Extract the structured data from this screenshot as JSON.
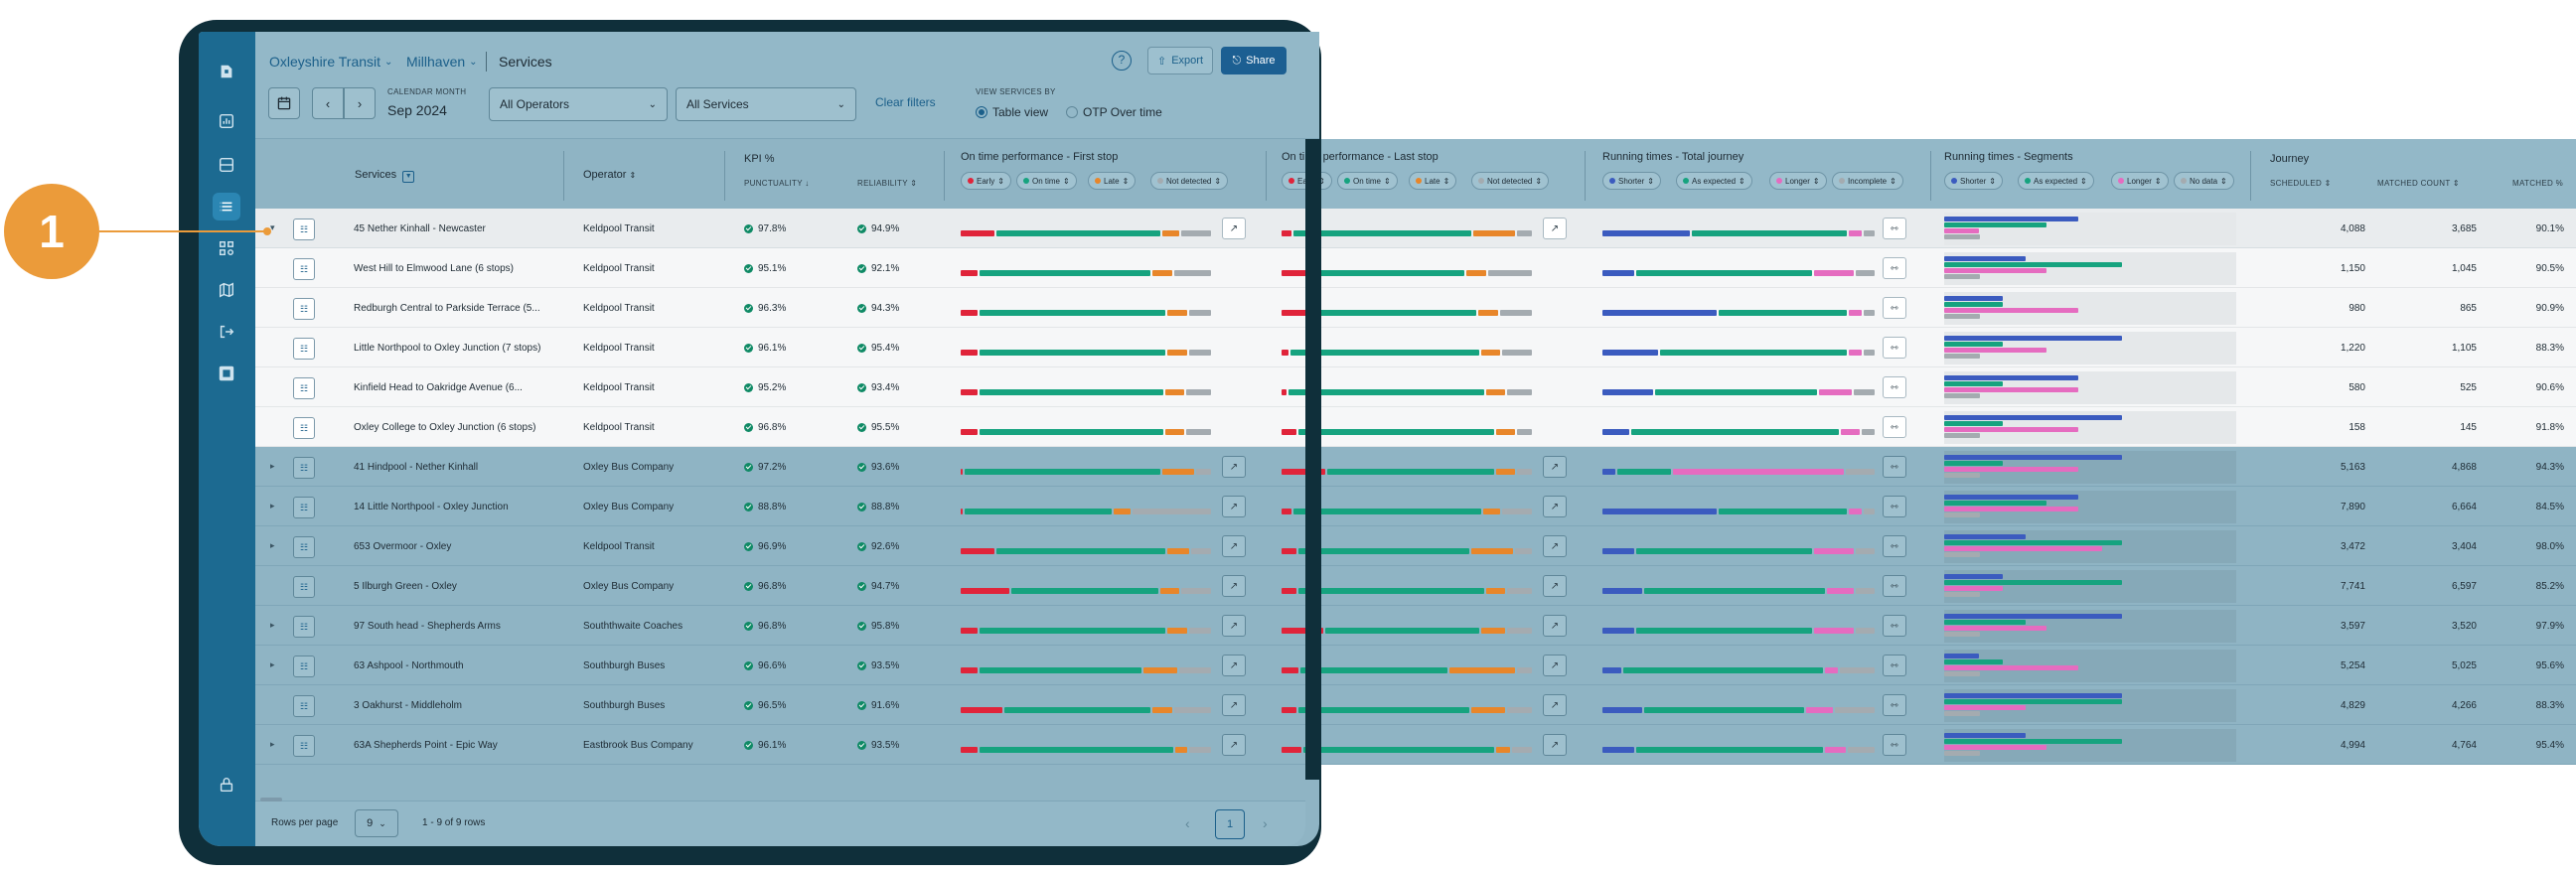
{
  "callout": {
    "label": "1"
  },
  "breadcrumb": {
    "org": "Oxleyshire Transit",
    "area": "Millhaven",
    "page": "Services"
  },
  "header": {
    "help": "?",
    "export_label": "Export",
    "share_label": "Share"
  },
  "filters": {
    "calendar_month_label": "CALENDAR MONTH",
    "calendar_month_value": "Sep 2024",
    "operator_select": "All Operators",
    "service_select": "All Services",
    "clear_label": "Clear filters",
    "view_by_label": "VIEW SERVICES BY",
    "view_table": "Table view",
    "view_otp": "OTP Over time"
  },
  "columns": {
    "services": "Services",
    "operator": "Operator",
    "kpi": "KPI %",
    "punctuality": "PUNCTUALITY",
    "reliability": "RELIABILITY",
    "otp_first": "On time performance - First stop",
    "otp_last": "On time performance - Last stop",
    "rt_total": "Running times - Total journey",
    "rt_segments": "Running times - Segments",
    "journey": "Journey",
    "scheduled": "SCHEDULED",
    "matched_count": "MATCHED COUNT",
    "matched_pct": "MATCHED %"
  },
  "chips": {
    "otp": [
      "Early",
      "On time",
      "Late",
      "Not detected"
    ],
    "rt_total": [
      "Shorter",
      "As expected",
      "Longer",
      "Incomplete"
    ],
    "rt_segments": [
      "Shorter",
      "As expected",
      "Longer",
      "No data"
    ]
  },
  "colors": {
    "early": "#e0243a",
    "on_time": "#16a37f",
    "late": "#e8862a",
    "not_detected": "#a4abb0",
    "shorter": "#3b5bbf",
    "as_expected": "#16a37f",
    "longer": "#e56cc0",
    "incomplete": "#a4abb0"
  },
  "rows": [
    {
      "type": "expanded",
      "name": "45 Nether Kinhall - Newcaster",
      "operator": "Keldpool Transit",
      "punctuality": "97.8%",
      "reliability": "94.9%",
      "scheduled": "4,088",
      "matched": "3,685",
      "matched_pct": "90.1%",
      "first": [
        0.14,
        0.67,
        0.07,
        0.12
      ],
      "last": [
        0.04,
        0.73,
        0.17,
        0.06
      ],
      "rt": [
        0.33,
        0.58,
        0.05,
        0.04
      ],
      "seg": [
        0.46,
        0.35,
        0.12
      ]
    },
    {
      "type": "child",
      "name": "West Hill to Elmwood Lane (6 stops)",
      "operator": "Keldpool Transit",
      "punctuality": "95.1%",
      "reliability": "92.1%",
      "scheduled": "1,150",
      "matched": "1,045",
      "matched_pct": "90.5%",
      "first": [
        0.07,
        0.7,
        0.08,
        0.15
      ],
      "last": [
        0.14,
        0.6,
        0.08,
        0.18
      ],
      "rt": [
        0.12,
        0.66,
        0.15,
        0.07
      ],
      "seg": [
        0.28,
        0.61,
        0.35
      ]
    },
    {
      "type": "child",
      "name": "Redburgh Central to Parkside Terrace (5...",
      "operator": "Keldpool Transit",
      "punctuality": "96.3%",
      "reliability": "94.3%",
      "scheduled": "980",
      "matched": "865",
      "matched_pct": "90.9%",
      "first": [
        0.07,
        0.76,
        0.08,
        0.09
      ],
      "last": [
        0.13,
        0.66,
        0.08,
        0.13
      ],
      "rt": [
        0.43,
        0.48,
        0.05,
        0.04
      ],
      "seg": [
        0.2,
        0.2,
        0.46
      ]
    },
    {
      "type": "child",
      "name": "Little Northpool to Oxley Junction (7 stops)",
      "operator": "Keldpool Transit",
      "punctuality": "96.1%",
      "reliability": "95.4%",
      "scheduled": "1,220",
      "matched": "1,105",
      "matched_pct": "88.3%",
      "first": [
        0.07,
        0.76,
        0.08,
        0.09
      ],
      "last": [
        0.03,
        0.77,
        0.08,
        0.12
      ],
      "rt": [
        0.21,
        0.7,
        0.05,
        0.04
      ],
      "seg": [
        0.61,
        0.2,
        0.35
      ]
    },
    {
      "type": "child",
      "name": "Kinfield Head to Oakridge Avenue (6...",
      "operator": "Keldpool Transit",
      "punctuality": "95.2%",
      "reliability": "93.4%",
      "scheduled": "580",
      "matched": "525",
      "matched_pct": "90.6%",
      "first": [
        0.07,
        0.75,
        0.08,
        0.1
      ],
      "last": [
        0.02,
        0.8,
        0.08,
        0.1
      ],
      "rt": [
        0.19,
        0.61,
        0.12,
        0.08
      ],
      "seg": [
        0.46,
        0.2,
        0.46
      ]
    },
    {
      "type": "child",
      "name": "Oxley College to Oxley Junction (6 stops)",
      "operator": "Keldpool Transit",
      "punctuality": "96.8%",
      "reliability": "95.5%",
      "scheduled": "158",
      "matched": "145",
      "matched_pct": "91.8%",
      "first": [
        0.07,
        0.75,
        0.08,
        0.1
      ],
      "last": [
        0.06,
        0.8,
        0.08,
        0.06
      ],
      "rt": [
        0.1,
        0.78,
        0.07,
        0.05
      ],
      "seg": [
        0.61,
        0.2,
        0.46
      ]
    },
    {
      "type": "normal",
      "expand": true,
      "name": "41 Hindpool - Nether Kinhall",
      "operator": "Oxley Bus Company",
      "punctuality": "97.2%",
      "reliability": "93.6%",
      "scheduled": "5,163",
      "matched": "4,868",
      "matched_pct": "94.3%",
      "first": [
        0.01,
        0.8,
        0.13,
        0.06
      ],
      "last": [
        0.18,
        0.68,
        0.08,
        0.06
      ],
      "rt": [
        0.05,
        0.2,
        0.64,
        0.11
      ],
      "seg": [
        0.61,
        0.2,
        0.46
      ]
    },
    {
      "type": "normal",
      "expand": true,
      "name": "14 Little Northpool - Oxley Junction",
      "operator": "Oxley Bus Company",
      "punctuality": "88.8%",
      "reliability": "88.8%",
      "scheduled": "7,890",
      "matched": "6,664",
      "matched_pct": "84.5%",
      "first": [
        0.01,
        0.6,
        0.07,
        0.32
      ],
      "last": [
        0.04,
        0.77,
        0.07,
        0.12
      ],
      "rt": [
        0.43,
        0.48,
        0.05,
        0.04
      ],
      "seg": [
        0.46,
        0.35,
        0.46
      ]
    },
    {
      "type": "normal",
      "expand": true,
      "name": "653 Overmoor - Oxley",
      "operator": "Keldpool Transit",
      "punctuality": "96.9%",
      "reliability": "92.6%",
      "scheduled": "3,472",
      "matched": "3,404",
      "matched_pct": "98.0%",
      "first": [
        0.14,
        0.69,
        0.09,
        0.08
      ],
      "last": [
        0.06,
        0.7,
        0.17,
        0.07
      ],
      "rt": [
        0.12,
        0.66,
        0.15,
        0.07
      ],
      "seg": [
        0.28,
        0.61,
        0.54
      ]
    },
    {
      "type": "normal",
      "expand": false,
      "name": "5 Ilburgh Green - Oxley",
      "operator": "Oxley Bus Company",
      "punctuality": "96.8%",
      "reliability": "94.7%",
      "scheduled": "7,741",
      "matched": "6,597",
      "matched_pct": "85.2%",
      "first": [
        0.2,
        0.6,
        0.08,
        0.12
      ],
      "last": [
        0.06,
        0.76,
        0.08,
        0.1
      ],
      "rt": [
        0.15,
        0.68,
        0.1,
        0.07
      ],
      "seg": [
        0.2,
        0.61,
        0.2
      ]
    },
    {
      "type": "normal",
      "expand": true,
      "name": "97 South head - Shepherds Arms",
      "operator": "Souththwaite Coaches",
      "punctuality": "96.8%",
      "reliability": "95.8%",
      "scheduled": "3,597",
      "matched": "3,520",
      "matched_pct": "97.9%",
      "first": [
        0.07,
        0.76,
        0.08,
        0.09
      ],
      "last": [
        0.17,
        0.63,
        0.1,
        0.1
      ],
      "rt": [
        0.12,
        0.66,
        0.15,
        0.07
      ],
      "seg": [
        0.61,
        0.28,
        0.35
      ]
    },
    {
      "type": "normal",
      "expand": true,
      "name": "63 Ashpool - Northmouth",
      "operator": "Southburgh Buses",
      "punctuality": "96.6%",
      "reliability": "93.5%",
      "scheduled": "5,254",
      "matched": "5,025",
      "matched_pct": "95.6%",
      "first": [
        0.07,
        0.66,
        0.14,
        0.13
      ],
      "last": [
        0.07,
        0.6,
        0.27,
        0.06
      ],
      "rt": [
        0.07,
        0.75,
        0.05,
        0.13
      ],
      "seg": [
        0.12,
        0.2,
        0.46
      ]
    },
    {
      "type": "normal",
      "expand": false,
      "name": "3 Oakhurst - Middleholm",
      "operator": "Southburgh Buses",
      "punctuality": "96.5%",
      "reliability": "91.6%",
      "scheduled": "4,829",
      "matched": "4,266",
      "matched_pct": "88.3%",
      "first": [
        0.17,
        0.6,
        0.08,
        0.15
      ],
      "last": [
        0.06,
        0.7,
        0.14,
        0.1
      ],
      "rt": [
        0.15,
        0.6,
        0.1,
        0.15
      ],
      "seg": [
        0.61,
        0.61,
        0.28
      ]
    },
    {
      "type": "normal",
      "expand": true,
      "name": "63A Shepherds Point - Epic Way",
      "operator": "Eastbrook Bus Company",
      "punctuality": "96.1%",
      "reliability": "93.5%",
      "scheduled": "4,994",
      "matched": "4,764",
      "matched_pct": "95.4%",
      "first": [
        0.07,
        0.79,
        0.05,
        0.09
      ],
      "last": [
        0.08,
        0.78,
        0.06,
        0.08
      ],
      "rt": [
        0.12,
        0.7,
        0.08,
        0.1
      ],
      "seg": [
        0.28,
        0.61,
        0.35
      ]
    }
  ],
  "footer": {
    "rows_per_page_label": "Rows per page",
    "rows_per_page_value": "9",
    "range": "1 - 9 of 9 rows",
    "page": "1"
  }
}
